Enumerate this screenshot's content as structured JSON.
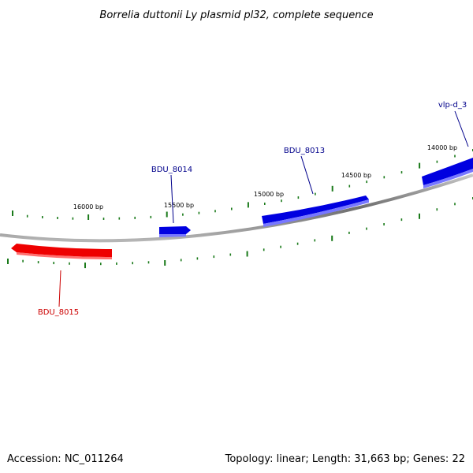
{
  "header": {
    "title": "Borrelia duttonii Ly plasmid pl32, complete sequence"
  },
  "footer": {
    "accession": "Accession: NC_011264",
    "summary": "Topology: linear; Length: 31,663 bp; Genes: 22"
  },
  "colors": {
    "backbone": "#8a8a8a",
    "forward_gene": "#0000e0",
    "reverse_gene": "#ee0000",
    "tick": "#1a7a1a",
    "forward_label": "#00008b",
    "reverse_label": "#cc0000"
  },
  "ticks": [
    {
      "label": "16000 bp"
    },
    {
      "label": "15500 bp"
    },
    {
      "label": "15000 bp"
    },
    {
      "label": "14500 bp"
    },
    {
      "label": "14000 bp"
    }
  ],
  "genes": [
    {
      "name": "BDU_8015",
      "strand": "reverse"
    },
    {
      "name": "BDU_8014",
      "strand": "forward"
    },
    {
      "name": "BDU_8013",
      "strand": "forward"
    },
    {
      "name": "vlp-d_3",
      "strand": "forward"
    }
  ]
}
